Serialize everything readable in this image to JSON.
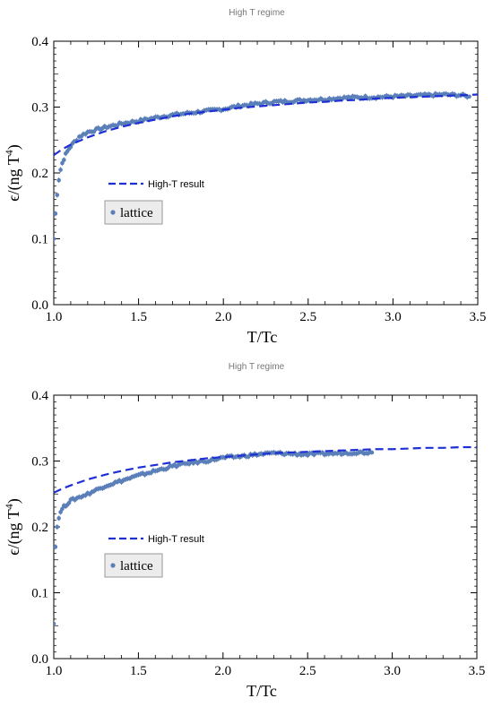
{
  "chart_data": [
    {
      "type": "scatter",
      "title": "High T regime",
      "xlabel": "T/Tc",
      "ylabel_text": "ϵ/(ng T",
      "ylabel_exp": "4",
      "ylabel_close": ")",
      "xlim": [
        1.0,
        3.5
      ],
      "ylim": [
        0.0,
        0.4
      ],
      "xticks": [
        1.0,
        1.5,
        2.0,
        2.5,
        3.0,
        3.5
      ],
      "xtick_labels": [
        "1.0",
        "1.5",
        "2.0",
        "2.5",
        "3.0",
        "3.5"
      ],
      "yticks": [
        0.0,
        0.1,
        0.2,
        0.3,
        0.4
      ],
      "ytick_labels": [
        "0.0",
        "0.1",
        "0.2",
        "0.3",
        "0.4"
      ],
      "grid": false,
      "legend": {
        "line_label": "High-T result",
        "box_label": "lattice"
      },
      "series": [
        {
          "name": "High-T result",
          "kind": "line",
          "color": "#1f2fd6",
          "dashed": true,
          "x": [
            1.0,
            1.05,
            1.1,
            1.2,
            1.3,
            1.4,
            1.5,
            1.6,
            1.7,
            1.8,
            1.9,
            2.0,
            2.1,
            2.2,
            2.3,
            2.4,
            2.5,
            2.6,
            2.7,
            2.8,
            2.9,
            3.0,
            3.1,
            3.2,
            3.3,
            3.4,
            3.5
          ],
          "y": [
            0.227,
            0.236,
            0.243,
            0.254,
            0.263,
            0.27,
            0.276,
            0.281,
            0.286,
            0.29,
            0.293,
            0.296,
            0.299,
            0.301,
            0.303,
            0.305,
            0.307,
            0.308,
            0.31,
            0.311,
            0.313,
            0.314,
            0.315,
            0.316,
            0.317,
            0.318,
            0.319
          ]
        },
        {
          "name": "lattice",
          "kind": "points",
          "color": "#5b7fb8",
          "x": [
            1.0,
            1.01,
            1.02,
            1.03,
            1.04,
            1.05,
            1.07,
            1.09,
            1.12,
            1.15,
            1.2,
            1.3,
            1.4,
            1.5,
            1.6,
            1.7,
            1.8,
            1.9,
            2.0,
            2.1,
            2.2,
            2.3,
            2.4,
            2.5,
            2.6,
            2.7,
            2.8,
            2.9,
            3.0,
            3.1,
            3.2,
            3.3,
            3.4,
            3.45
          ],
          "y": [
            0.1,
            0.138,
            0.168,
            0.19,
            0.205,
            0.215,
            0.228,
            0.237,
            0.247,
            0.255,
            0.262,
            0.269,
            0.275,
            0.279,
            0.284,
            0.288,
            0.291,
            0.294,
            0.297,
            0.302,
            0.305,
            0.308,
            0.309,
            0.311,
            0.312,
            0.314,
            0.315,
            0.315,
            0.316,
            0.317,
            0.318,
            0.319,
            0.318,
            0.316
          ]
        }
      ]
    },
    {
      "type": "scatter",
      "title": "High T regime",
      "xlabel": "T/Tc",
      "ylabel_text": "ϵ/(ng T",
      "ylabel_exp": "4",
      "ylabel_close": ")",
      "xlim": [
        1.0,
        3.5
      ],
      "ylim": [
        0.0,
        0.4
      ],
      "xticks": [
        1.0,
        1.5,
        2.0,
        2.5,
        3.0,
        3.5
      ],
      "xtick_labels": [
        "1.0",
        "1.5",
        "2.0",
        "2.5",
        "3.0",
        "3.5"
      ],
      "yticks": [
        0.0,
        0.1,
        0.2,
        0.3,
        0.4
      ],
      "ytick_labels": [
        "0.0",
        "0.1",
        "0.2",
        "0.3",
        "0.4"
      ],
      "grid": false,
      "legend": {
        "line_label": "High-T result",
        "box_label": "lattice"
      },
      "series": [
        {
          "name": "High-T result",
          "kind": "line",
          "color": "#1f2fd6",
          "dashed": true,
          "x": [
            1.0,
            1.05,
            1.1,
            1.2,
            1.3,
            1.4,
            1.5,
            1.6,
            1.7,
            1.8,
            1.9,
            2.0,
            2.1,
            2.2,
            2.3,
            2.4,
            2.5,
            2.6,
            2.7,
            2.8,
            2.9,
            3.0,
            3.1,
            3.2,
            3.3,
            3.4,
            3.5
          ],
          "y": [
            0.252,
            0.258,
            0.263,
            0.272,
            0.279,
            0.285,
            0.29,
            0.294,
            0.298,
            0.301,
            0.304,
            0.306,
            0.308,
            0.31,
            0.312,
            0.313,
            0.314,
            0.315,
            0.316,
            0.317,
            0.318,
            0.318,
            0.319,
            0.32,
            0.32,
            0.321,
            0.321
          ]
        },
        {
          "name": "lattice",
          "kind": "points",
          "color": "#5b7fb8",
          "x": [
            1.0,
            1.01,
            1.02,
            1.03,
            1.05,
            1.07,
            1.1,
            1.15,
            1.2,
            1.25,
            1.3,
            1.4,
            1.5,
            1.6,
            1.7,
            1.8,
            1.9,
            2.0,
            2.1,
            2.2,
            2.3,
            2.4,
            2.5,
            2.6,
            2.7,
            2.8,
            2.88
          ],
          "y": [
            0.055,
            0.17,
            0.2,
            0.215,
            0.228,
            0.233,
            0.24,
            0.245,
            0.25,
            0.256,
            0.262,
            0.27,
            0.278,
            0.285,
            0.292,
            0.297,
            0.3,
            0.305,
            0.307,
            0.31,
            0.312,
            0.311,
            0.31,
            0.311,
            0.312,
            0.313,
            0.313
          ]
        }
      ]
    }
  ]
}
